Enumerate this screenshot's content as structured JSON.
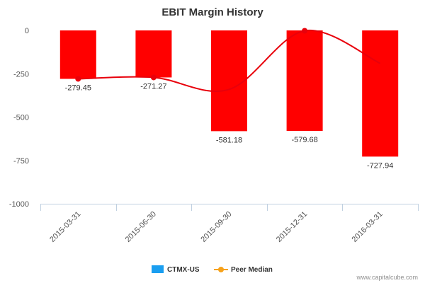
{
  "chart_data": {
    "type": "bar",
    "title": "EBIT Margin History",
    "categories": [
      "2015-03-31",
      "2015-06-30",
      "2015-09-30",
      "2015-12-31",
      "2016-03-31"
    ],
    "series": [
      {
        "name": "CTMX-US",
        "kind": "bar",
        "color": "#ff0000",
        "values": [
          -279.45,
          -271.27,
          -581.18,
          -579.68,
          -727.94
        ],
        "labels": [
          "-279.45",
          "-271.27",
          "-581.18",
          "-579.68",
          "-727.94"
        ]
      },
      {
        "name": "Peer Median",
        "kind": "line",
        "color": "#e8000b",
        "values": [
          -279.45,
          -271.27,
          -340,
          -2,
          -190
        ]
      }
    ],
    "legend_colors": {
      "CTMX-US": "#1a9ef0",
      "Peer Median": "#f7a21b"
    },
    "yticks": [
      0,
      -250,
      -500,
      -750,
      -1000
    ],
    "ytick_labels": [
      "0",
      "-250",
      "-500",
      "-750",
      "-1000"
    ],
    "ylim": [
      -1000,
      0
    ],
    "grid": false,
    "legend_position": "bottom-center"
  },
  "credit": "www.capitalcube.com"
}
